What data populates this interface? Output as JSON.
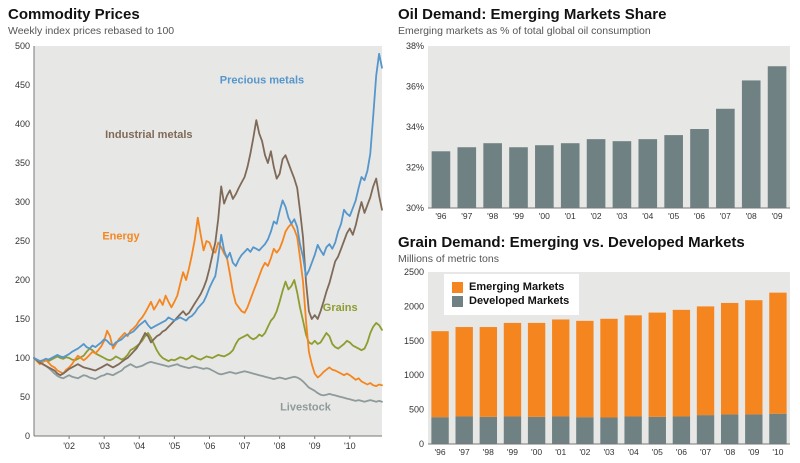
{
  "panels": {
    "commodity": {
      "title": "Commodity Prices",
      "subtitle": "Weekly index prices rebased to 100"
    },
    "oil": {
      "title": "Oil Demand: Emerging Markets Share",
      "subtitle": "Emerging markets as % of total global oil consumption"
    },
    "grain": {
      "title": "Grain Demand: Emerging vs. Developed Markets",
      "subtitle": "Millions of metric tons"
    }
  },
  "chart_data": [
    {
      "type": "line",
      "title": "Commodity Prices",
      "subtitle": "Weekly index prices rebased to 100",
      "ylim": [
        0,
        500
      ],
      "yticks": [
        0,
        50,
        100,
        150,
        200,
        250,
        300,
        350,
        400,
        450,
        500
      ],
      "x_ticks": [
        {
          "index": 12,
          "label": "'02"
        },
        {
          "index": 24,
          "label": "'03"
        },
        {
          "index": 36,
          "label": "'04"
        },
        {
          "index": 48,
          "label": "'05"
        },
        {
          "index": 60,
          "label": "'06"
        },
        {
          "index": 72,
          "label": "'07"
        },
        {
          "index": 84,
          "label": "'08"
        },
        {
          "index": 96,
          "label": "'09"
        },
        {
          "index": 108,
          "label": "'10"
        }
      ],
      "series": [
        {
          "name": "Livestock",
          "color": "#8e9b9b",
          "label": {
            "fx": 0.78,
            "value": 33
          },
          "values": [
            100,
            97,
            95,
            92,
            90,
            87,
            84,
            80,
            77,
            75,
            74,
            76,
            78,
            76,
            75,
            74,
            76,
            78,
            77,
            75,
            74,
            73,
            75,
            77,
            78,
            80,
            79,
            78,
            80,
            82,
            84,
            88,
            90,
            92,
            90,
            88,
            89,
            90,
            92,
            94,
            95,
            94,
            93,
            92,
            91,
            90,
            89,
            90,
            91,
            92,
            90,
            89,
            88,
            87,
            88,
            89,
            88,
            87,
            86,
            87,
            86,
            84,
            82,
            80,
            79,
            80,
            81,
            82,
            81,
            80,
            81,
            82,
            83,
            82,
            81,
            80,
            79,
            78,
            77,
            76,
            75,
            74,
            73,
            74,
            75,
            74,
            73,
            74,
            75,
            76,
            75,
            73,
            70,
            66,
            62,
            60,
            58,
            55,
            53,
            52,
            53,
            54,
            53,
            52,
            51,
            50,
            49,
            48,
            47,
            46,
            45,
            46,
            45,
            44,
            45,
            46,
            45,
            44,
            45,
            44
          ]
        },
        {
          "name": "Grains",
          "color": "#8e9c30",
          "label": {
            "fx": 0.88,
            "value": 160
          },
          "values": [
            100,
            98,
            96,
            95,
            97,
            96,
            98,
            100,
            102,
            100,
            99,
            101,
            100,
            98,
            97,
            99,
            101,
            103,
            108,
            112,
            110,
            106,
            104,
            102,
            100,
            98,
            97,
            99,
            102,
            100,
            98,
            100,
            104,
            110,
            112,
            115,
            118,
            122,
            128,
            132,
            126,
            118,
            110,
            104,
            100,
            98,
            96,
            98,
            97,
            99,
            101,
            100,
            98,
            100,
            103,
            101,
            99,
            98,
            100,
            102,
            101,
            100,
            102,
            104,
            103,
            102,
            104,
            106,
            110,
            118,
            124,
            126,
            128,
            130,
            126,
            124,
            126,
            130,
            128,
            132,
            140,
            148,
            152,
            160,
            172,
            186,
            198,
            188,
            192,
            200,
            184,
            164,
            148,
            130,
            120,
            118,
            122,
            118,
            120,
            126,
            132,
            128,
            118,
            114,
            112,
            115,
            118,
            122,
            120,
            116,
            114,
            112,
            110,
            112,
            120,
            132,
            140,
            145,
            142,
            136
          ]
        },
        {
          "name": "Energy",
          "color": "#f5861f",
          "label": {
            "fx": 0.25,
            "value": 252
          },
          "values": [
            100,
            96,
            92,
            95,
            98,
            94,
            90,
            88,
            84,
            82,
            80,
            85,
            88,
            92,
            98,
            103,
            100,
            97,
            100,
            104,
            108,
            106,
            110,
            115,
            122,
            135,
            128,
            112,
            118,
            124,
            128,
            132,
            128,
            135,
            138,
            142,
            148,
            152,
            158,
            165,
            172,
            162,
            168,
            175,
            168,
            180,
            172,
            165,
            172,
            180,
            195,
            210,
            200,
            215,
            232,
            252,
            280,
            258,
            238,
            250,
            248,
            238,
            235,
            248,
            242,
            234,
            228,
            208,
            185,
            170,
            165,
            160,
            158,
            165,
            175,
            185,
            195,
            205,
            215,
            222,
            218,
            228,
            240,
            235,
            240,
            250,
            262,
            268,
            272,
            265,
            255,
            228,
            198,
            148,
            108,
            92,
            80,
            75,
            78,
            82,
            85,
            88,
            85,
            84,
            82,
            80,
            78,
            80,
            78,
            75,
            72,
            74,
            70,
            68,
            66,
            68,
            65,
            64,
            66,
            65
          ]
        },
        {
          "name": "Industrial metals",
          "color": "#7f6a58",
          "label": {
            "fx": 0.33,
            "value": 382
          },
          "values": [
            100,
            97,
            94,
            92,
            90,
            88,
            86,
            84,
            80,
            78,
            80,
            83,
            86,
            88,
            90,
            92,
            90,
            88,
            87,
            86,
            85,
            84,
            86,
            88,
            90,
            92,
            90,
            88,
            90,
            92,
            95,
            98,
            100,
            104,
            108,
            112,
            118,
            125,
            132,
            128,
            120,
            124,
            128,
            130,
            134,
            136,
            140,
            144,
            148,
            152,
            156,
            160,
            155,
            158,
            164,
            170,
            176,
            182,
            190,
            200,
            215,
            232,
            248,
            278,
            320,
            298,
            308,
            315,
            304,
            310,
            318,
            325,
            332,
            345,
            362,
            382,
            405,
            388,
            378,
            360,
            350,
            365,
            345,
            330,
            336,
            355,
            360,
            350,
            340,
            330,
            318,
            288,
            255,
            198,
            160,
            150,
            155,
            150,
            160,
            172,
            185,
            196,
            210,
            224,
            230,
            240,
            250,
            260,
            266,
            258,
            270,
            286,
            300,
            286,
            296,
            306,
            320,
            330,
            308,
            290
          ]
        },
        {
          "name": "Precious metals",
          "color": "#5596cb",
          "label": {
            "fx": 0.655,
            "value": 452
          },
          "values": [
            100,
            98,
            96,
            97,
            99,
            98,
            100,
            102,
            104,
            102,
            101,
            103,
            105,
            108,
            110,
            112,
            115,
            118,
            114,
            112,
            116,
            114,
            117,
            120,
            124,
            122,
            118,
            116,
            120,
            122,
            124,
            128,
            130,
            132,
            134,
            138,
            142,
            145,
            148,
            142,
            138,
            140,
            142,
            144,
            146,
            148,
            152,
            150,
            148,
            150,
            152,
            150,
            148,
            152,
            154,
            158,
            164,
            168,
            172,
            180,
            190,
            198,
            205,
            228,
            258,
            238,
            228,
            235,
            222,
            218,
            226,
            232,
            236,
            240,
            236,
            242,
            240,
            238,
            242,
            246,
            252,
            262,
            275,
            272,
            288,
            302,
            294,
            280,
            272,
            278,
            268,
            245,
            230,
            205,
            212,
            222,
            232,
            245,
            238,
            232,
            242,
            246,
            240,
            248,
            262,
            272,
            290,
            285,
            282,
            292,
            302,
            318,
            332,
            328,
            340,
            362,
            410,
            462,
            490,
            472
          ]
        }
      ]
    },
    {
      "type": "bar",
      "title": "Oil Demand: Emerging Markets Share",
      "subtitle": "Emerging markets as % of total global oil consumption",
      "bar_color": "#6f8182",
      "ylim": [
        30,
        38
      ],
      "yticks": [
        30,
        32,
        34,
        36,
        38
      ],
      "ytick_suffix": "%",
      "categories": [
        "'96",
        "'97",
        "'98",
        "'99",
        "'00",
        "'01",
        "'02",
        "'03",
        "'04",
        "'05",
        "'06",
        "'07",
        "'08",
        "'09"
      ],
      "values": [
        32.8,
        33.0,
        33.2,
        33.0,
        33.1,
        33.2,
        33.4,
        33.3,
        33.4,
        33.6,
        33.9,
        34.9,
        36.3,
        37.0
      ]
    },
    {
      "type": "stacked-bar",
      "title": "Grain Demand: Emerging vs. Developed Markets",
      "subtitle": "Millions of metric tons",
      "ylim": [
        0,
        2500
      ],
      "yticks": [
        0,
        500,
        1000,
        1500,
        2000,
        2500
      ],
      "categories": [
        "'96",
        "'97",
        "'98",
        "'99",
        "'00",
        "'01",
        "'02",
        "'03",
        "'04",
        "'05",
        "'06",
        "'07",
        "'08",
        "'09",
        "'10"
      ],
      "stack_order": [
        1,
        0
      ],
      "series": [
        {
          "name": "Emerging Markets",
          "color": "#f5861f",
          "values": [
            1250,
            1300,
            1305,
            1360,
            1365,
            1410,
            1400,
            1435,
            1470,
            1515,
            1550,
            1580,
            1620,
            1660,
            1760
          ]
        },
        {
          "name": "Developed Markets",
          "color": "#6f8182",
          "values": [
            390,
            400,
            395,
            400,
            395,
            400,
            390,
            385,
            400,
            395,
            400,
            420,
            430,
            430,
            440
          ]
        }
      ]
    }
  ]
}
